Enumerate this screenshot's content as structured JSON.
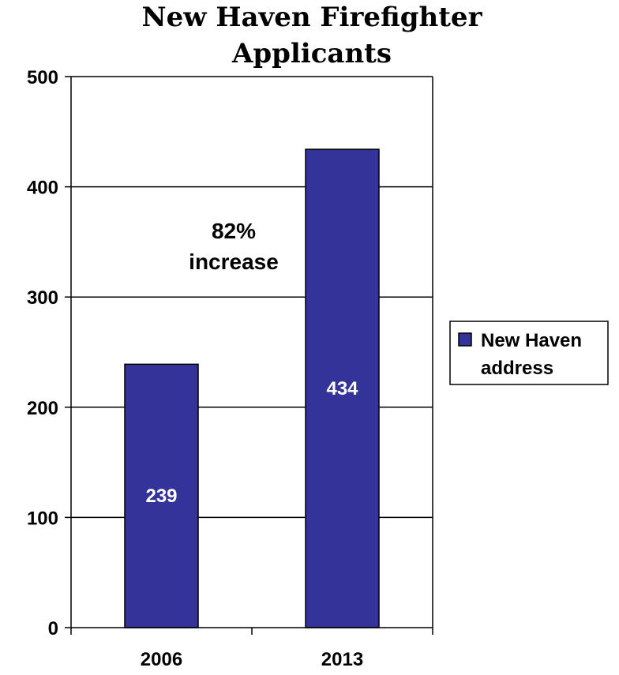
{
  "chart_data": {
    "type": "bar",
    "title_lines": [
      "New Haven Firefighter",
      "Applicants"
    ],
    "categories": [
      "2006",
      "2013"
    ],
    "series": [
      {
        "name": "New Haven address",
        "name_lines": [
          "New Haven",
          "address"
        ],
        "values": [
          239,
          434
        ],
        "color": "#333399"
      }
    ],
    "data_labels": [
      "239",
      "434"
    ],
    "ylim": [
      0,
      500
    ],
    "yticks": [
      0,
      100,
      200,
      300,
      400,
      500
    ],
    "grid": true,
    "legend_position": "right",
    "annotation_lines": [
      "82%",
      "increase"
    ],
    "xlabel": "",
    "ylabel": ""
  }
}
